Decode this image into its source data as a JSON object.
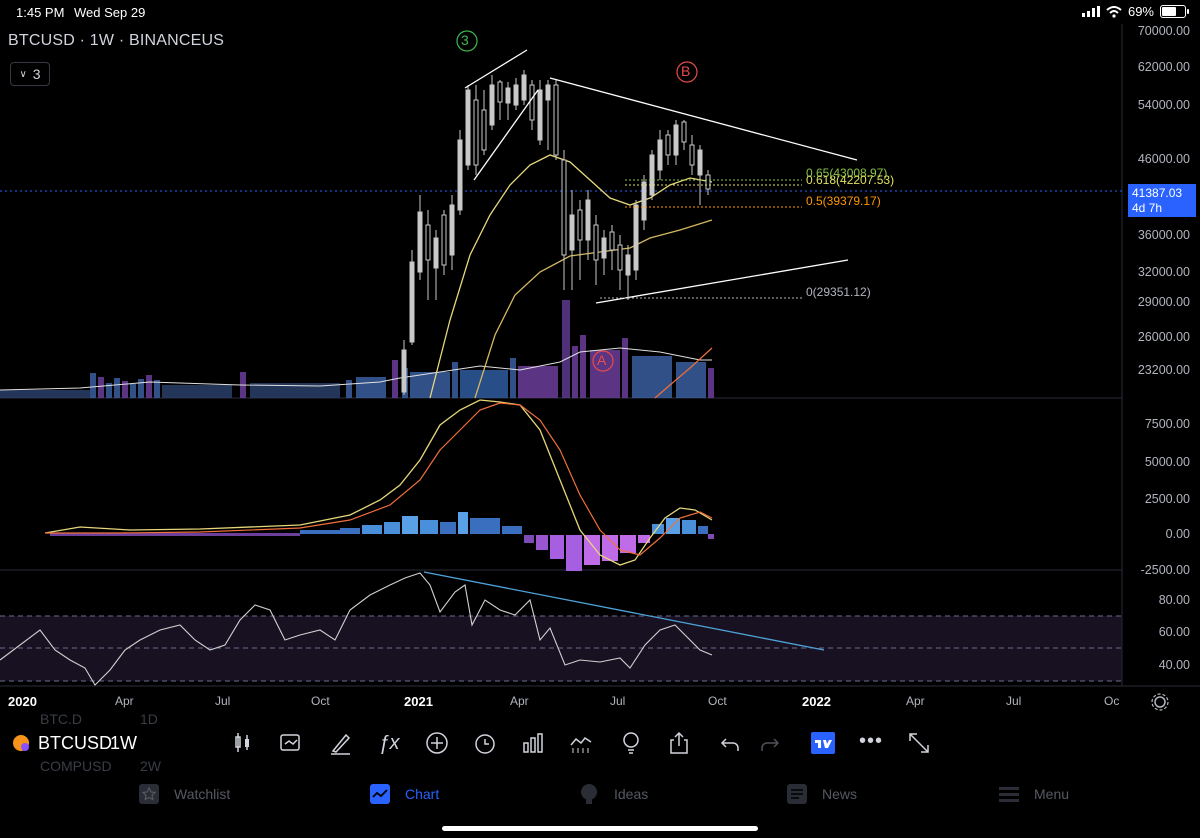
{
  "status_bar": {
    "time": "1:45 PM",
    "date": "Wed Sep 29",
    "battery": "69%"
  },
  "chart": {
    "symbol_title": "BTCUSD · 1W · BINANCEUS",
    "layer_count": "3",
    "price_axis": [
      "70000.00",
      "62000.00",
      "54000.00",
      "46000.00",
      "36000.00",
      "32000.00",
      "29000.00",
      "26000.00",
      "23200.00"
    ],
    "current_price": "41387.03",
    "countdown": "4d 7h",
    "fib_levels": [
      {
        "label": "0.65(43008.97)",
        "color": "#8bc34a"
      },
      {
        "label": "0.618(42207.53)",
        "color": "#e0e060"
      },
      {
        "label": "0.5(39379.17)",
        "color": "#ff9800"
      },
      {
        "label": "0(29351.12)",
        "color": "#b2b5be"
      }
    ],
    "wave_labels": {
      "w3": "3",
      "wB": "B",
      "wA": "A"
    },
    "macd_axis": [
      "7500.00",
      "5000.00",
      "2500.00",
      "0.00",
      "-2500.00"
    ],
    "rsi_axis": [
      "80.00",
      "60.00",
      "40.00"
    ],
    "time_axis": [
      "2020",
      "Apr",
      "Jul",
      "Oct",
      "2021",
      "Apr",
      "Jul",
      "Oct",
      "2022",
      "Apr",
      "Jul",
      "Oc"
    ]
  },
  "toolbar": {
    "symbol": "BTCUSD",
    "interval": "1W",
    "ghost_list": [
      "BTC.D",
      "1D",
      "COMPUSD",
      "2W"
    ],
    "icons": [
      "candles-icon",
      "replay-icon",
      "draw-icon",
      "indicators-icon",
      "add-icon",
      "alert-icon",
      "bars-icon",
      "compare-icon",
      "ideas-icon",
      "share-icon",
      "undo-icon",
      "redo-icon",
      "tradingview-icon",
      "more-icon",
      "fullscreen-icon"
    ]
  },
  "nav": {
    "watchlist": "Watchlist",
    "chart": "Chart",
    "ideas": "Ideas",
    "news": "News",
    "menu": "Menu"
  },
  "colors": {
    "accent": "#2962ff",
    "up": "#c8c8c8",
    "ma_yellow": "#e6d77a",
    "macd_orange": "#f0703a",
    "rsi_trend": "#4fa3d9"
  }
}
